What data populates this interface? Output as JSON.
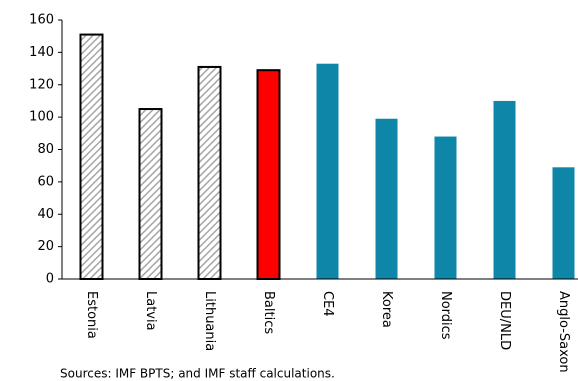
{
  "chart_data": {
    "type": "bar",
    "categories": [
      "Estonia",
      "Latvia",
      "Lithuania",
      "Baltics",
      "CE4",
      "Korea",
      "Nordics",
      "DEU/NLD",
      "Anglo-Saxon"
    ],
    "values": [
      151,
      105,
      131,
      129,
      133,
      99,
      88,
      110,
      69
    ],
    "colors": [
      "#a6a6a6",
      "#a6a6a6",
      "#a6a6a6",
      "#ff0000",
      "#0e86a8",
      "#0e86a8",
      "#0e86a8",
      "#0e86a8",
      "#0e86a8"
    ],
    "hatched": [
      true,
      true,
      true,
      false,
      false,
      false,
      false,
      false,
      false
    ],
    "outlined": [
      true,
      true,
      true,
      true,
      false,
      false,
      false,
      false,
      false
    ],
    "ylim": [
      0,
      160
    ],
    "yticks": [
      0,
      20,
      40,
      60,
      80,
      100,
      120,
      140,
      160
    ],
    "grid": false,
    "source": "Sources: IMF BPTS; and IMF staff calculations."
  }
}
